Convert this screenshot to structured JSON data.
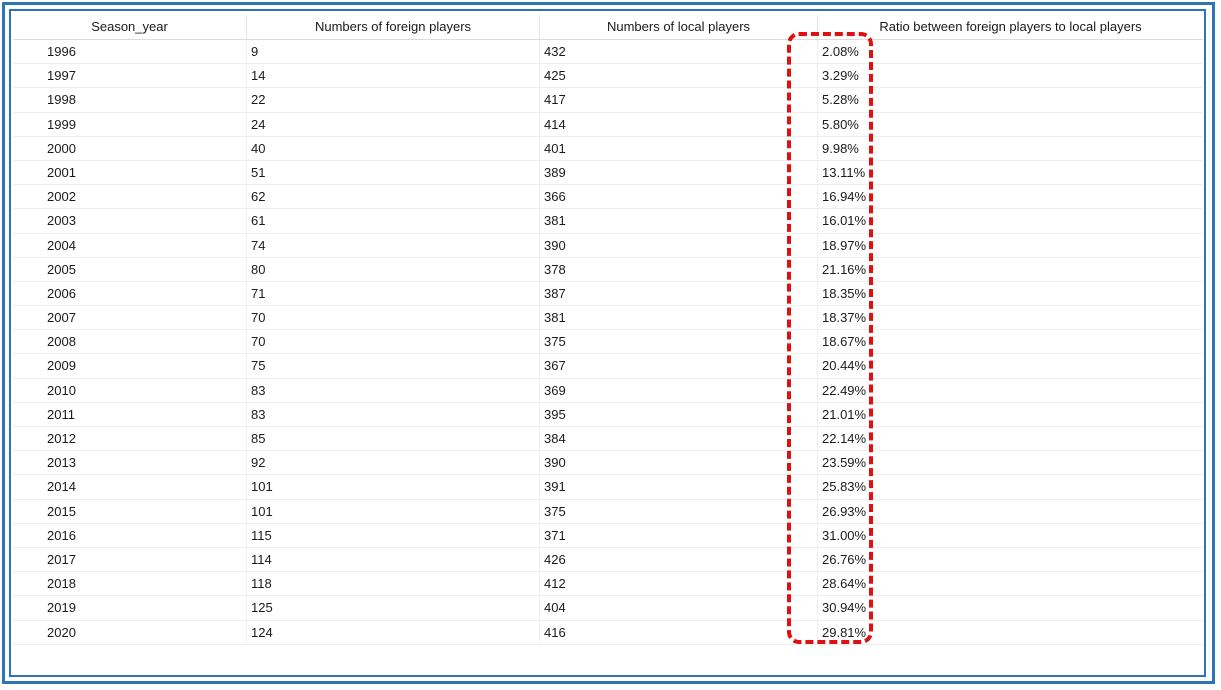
{
  "table": {
    "columns": [
      "Season_year",
      "Numbers of foreign players",
      "Numbers of local players",
      "Ratio between foreign players to local players"
    ],
    "rows": [
      [
        "1996",
        "9",
        "432",
        "2.08%"
      ],
      [
        "1997",
        "14",
        "425",
        "3.29%"
      ],
      [
        "1998",
        "22",
        "417",
        "5.28%"
      ],
      [
        "1999",
        "24",
        "414",
        "5.80%"
      ],
      [
        "2000",
        "40",
        "401",
        "9.98%"
      ],
      [
        "2001",
        "51",
        "389",
        "13.11%"
      ],
      [
        "2002",
        "62",
        "366",
        "16.94%"
      ],
      [
        "2003",
        "61",
        "381",
        "16.01%"
      ],
      [
        "2004",
        "74",
        "390",
        "18.97%"
      ],
      [
        "2005",
        "80",
        "378",
        "21.16%"
      ],
      [
        "2006",
        "71",
        "387",
        "18.35%"
      ],
      [
        "2007",
        "70",
        "381",
        "18.37%"
      ],
      [
        "2008",
        "70",
        "375",
        "18.67%"
      ],
      [
        "2009",
        "75",
        "367",
        "20.44%"
      ],
      [
        "2010",
        "83",
        "369",
        "22.49%"
      ],
      [
        "2011",
        "83",
        "395",
        "21.01%"
      ],
      [
        "2012",
        "85",
        "384",
        "22.14%"
      ],
      [
        "2013",
        "92",
        "390",
        "23.59%"
      ],
      [
        "2014",
        "101",
        "391",
        "25.83%"
      ],
      [
        "2015",
        "101",
        "375",
        "26.93%"
      ],
      [
        "2016",
        "115",
        "371",
        "31.00%"
      ],
      [
        "2017",
        "114",
        "426",
        "26.76%"
      ],
      [
        "2018",
        "118",
        "412",
        "28.64%"
      ],
      [
        "2019",
        "125",
        "404",
        "30.94%"
      ],
      [
        "2020",
        "124",
        "416",
        "29.81%"
      ]
    ]
  },
  "colors": {
    "frame": "#2e75b6",
    "highlight": "#e01010"
  }
}
